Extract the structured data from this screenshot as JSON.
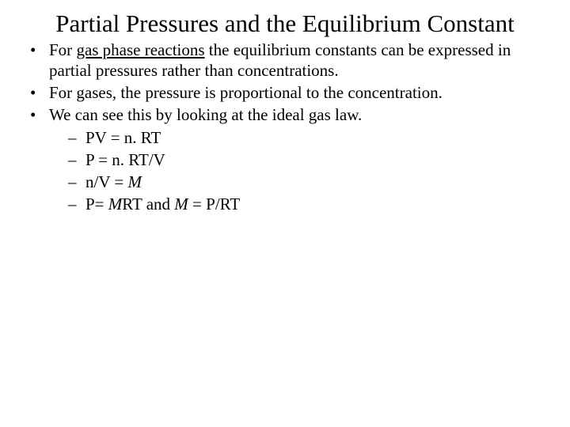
{
  "slide": {
    "title": "Partial Pressures and the Equilibrium Constant",
    "bullets": [
      {
        "pre": "For ",
        "underlined": "gas phase reactions",
        "post": " the equilibrium constants can be expressed in partial pressures rather than concentrations."
      },
      {
        "text": "For gases, the pressure is proportional to the concentration."
      },
      {
        "text": "We can see this by looking at the ideal gas law.",
        "sub": [
          {
            "text": "PV = n. RT"
          },
          {
            "text": "P = n. RT/V"
          },
          {
            "pre": "n/V = ",
            "italic1": "M"
          },
          {
            "pre": "P= ",
            "italic1": "M",
            "mid": "RT and ",
            "italic2": "M",
            "post": " = P/RT"
          }
        ]
      }
    ]
  },
  "style": {
    "background_color": "#ffffff",
    "text_color": "#000000",
    "title_fontsize": 31,
    "body_fontsize": 21,
    "font_family": "Times New Roman"
  }
}
